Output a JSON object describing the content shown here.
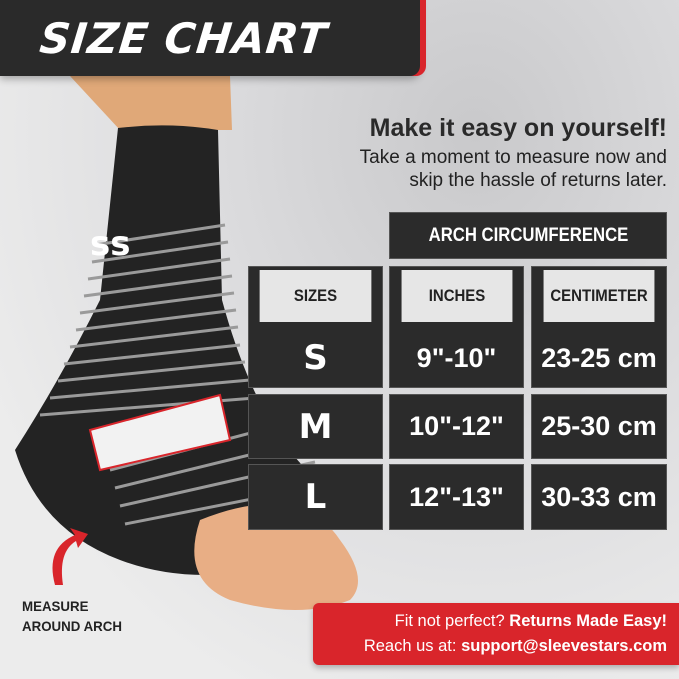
{
  "title": "SIZE CHART",
  "tagline": "Make it easy on yourself!",
  "subtitle_line1": "Take a moment to measure now and",
  "subtitle_line2": "skip the hassle of returns later.",
  "table": {
    "group_header": "ARCH CIRCUMFERENCE",
    "headers": [
      "SIZES",
      "INCHES",
      "CENTIMETER"
    ],
    "rows": [
      [
        "S",
        "9\"-10\"",
        "23-25 cm"
      ],
      [
        "M",
        "10\"-12\"",
        "25-30 cm"
      ],
      [
        "L",
        "12\"-13\"",
        "30-33 cm"
      ]
    ]
  },
  "measure_line1": "MEASURE",
  "measure_line2": "AROUND ARCH",
  "banner": {
    "fit": "Fit not perfect?",
    "returns": "Returns Made Easy!",
    "reach": "Reach us at:",
    "email": "support@sleevestars.com"
  },
  "colors": {
    "accent": "#d9252b",
    "dark": "#2b2b2b"
  },
  "icons": [
    "curved-arrow-icon",
    "sleevestars-logo"
  ]
}
